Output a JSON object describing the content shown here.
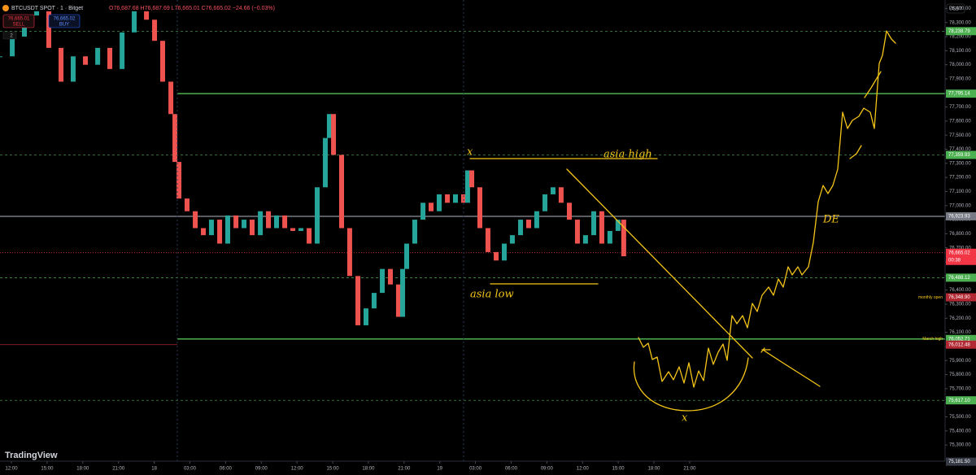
{
  "header": {
    "symbol": "BTCUSDT SPOT · 1 · Bitget",
    "ohlc": "O76,687.68 H76,687.69 L76,665.01 C76,665.02 −24.66 (−0.03%)",
    "sell_price": "76,665.01",
    "sell": "SELL",
    "buy_price": "76,665.02",
    "buy": "BUY",
    "indicators": "2",
    "currency": "USDT",
    "brand": "TradingView"
  },
  "chart_data": {
    "type": "candlestick",
    "xlim": [
      -0.96,
      78.47
    ],
    "ylim": [
      75185,
      78460
    ],
    "xticks": [
      {
        "value": 0,
        "label": "12:00"
      },
      {
        "value": 3,
        "label": "15:00"
      },
      {
        "value": 6,
        "label": "18:00"
      },
      {
        "value": 9,
        "label": "21:00"
      },
      {
        "value": 12,
        "label": "18"
      },
      {
        "value": 15,
        "label": "03:00"
      },
      {
        "value": 18,
        "label": "06:00"
      },
      {
        "value": 21,
        "label": "09:00"
      },
      {
        "value": 24,
        "label": "12:00"
      },
      {
        "value": 27,
        "label": "15:00"
      },
      {
        "value": 30,
        "label": "18:00"
      },
      {
        "value": 33,
        "label": "21:00"
      },
      {
        "value": 36,
        "label": "19"
      },
      {
        "value": 39,
        "label": "03:00"
      },
      {
        "value": 42,
        "label": "06:00"
      },
      {
        "value": 45,
        "label": "09:00"
      },
      {
        "value": 48,
        "label": "12:00"
      },
      {
        "value": 51,
        "label": "15:00"
      },
      {
        "value": 54,
        "label": "18:00"
      },
      {
        "value": 57,
        "label": "21:00"
      }
    ],
    "yticks": [
      {
        "value": 78400,
        "label": "78,400.00"
      },
      {
        "value": 78300,
        "label": "78,300.00"
      },
      {
        "value": 78200,
        "label": "78,200.00"
      },
      {
        "value": 78100,
        "label": "78,100.00"
      },
      {
        "value": 78000,
        "label": "78,000.00"
      },
      {
        "value": 77900,
        "label": "77,900.00"
      },
      {
        "value": 77800,
        "label": "77,800.00"
      },
      {
        "value": 77700,
        "label": "77,700.00"
      },
      {
        "value": 77600,
        "label": "77,600.00"
      },
      {
        "value": 77500,
        "label": "77,500.00"
      },
      {
        "value": 77400,
        "label": "77,400.00"
      },
      {
        "value": 77300,
        "label": "77,300.00"
      },
      {
        "value": 77200,
        "label": "77,200.00"
      },
      {
        "value": 77100,
        "label": "77,100.00"
      },
      {
        "value": 77000,
        "label": "77,000.00"
      },
      {
        "value": 76900,
        "label": "76,900.00"
      },
      {
        "value": 76800,
        "label": "76,800.00"
      },
      {
        "value": 76700,
        "label": "76,700.00"
      },
      {
        "value": 76600,
        "label": "76,600.00"
      },
      {
        "value": 76500,
        "label": "76,500.00"
      },
      {
        "value": 76400,
        "label": "76,400.00"
      },
      {
        "value": 76300,
        "label": "76,300.00"
      },
      {
        "value": 76200,
        "label": "76,200.00"
      },
      {
        "value": 76100,
        "label": "76,100.00"
      },
      {
        "value": 76000,
        "label": "76,000.00"
      },
      {
        "value": 75900,
        "label": "75,900.00"
      },
      {
        "value": 75800,
        "label": "75,800.00"
      },
      {
        "value": 75700,
        "label": "75,700.00"
      },
      {
        "value": 75600,
        "label": "75,600.00"
      },
      {
        "value": 75500,
        "label": "75,500.00"
      },
      {
        "value": 75400,
        "label": "75,400.00"
      },
      {
        "value": 75300,
        "label": "75,300.00"
      }
    ],
    "series": [
      {
        "name": "BTCUSDT",
        "up_color": "#26a69a",
        "down_color": "#ef5350",
        "x": [
          -0.96,
          0.07,
          1.09,
          2.12,
          3.14,
          4.17,
          5.19,
          6.22,
          7.25,
          8.27,
          9.3,
          10.32,
          11.35,
          12.03,
          12.71,
          13.4,
          13.74,
          14.08,
          14.76,
          15.45,
          16.13,
          16.81,
          17.5,
          18.18,
          18.87,
          19.55,
          20.23,
          20.92,
          21.6,
          22.28,
          22.97,
          23.65,
          24.33,
          25.02,
          25.7,
          26.38,
          26.72,
          27.07,
          27.75,
          28.43,
          29.12,
          29.8,
          30.48,
          31.17,
          31.85,
          32.53,
          32.88,
          33.22,
          33.9,
          34.59,
          35.27,
          35.95,
          36.64,
          37.32,
          38.0,
          38.34,
          38.69,
          39.37,
          40.05,
          40.74,
          41.42,
          42.1,
          42.79,
          43.47,
          44.15,
          44.84,
          45.52,
          46.2,
          46.89,
          47.57,
          48.25,
          48.94,
          49.62,
          50.3,
          50.98,
          51.46
        ],
        "values": [
          78060,
          78200,
          78350,
          78380,
          78120,
          77880,
          78060,
          78000,
          78120,
          77970,
          78230,
          78380,
          78320,
          78170,
          77880,
          77650,
          77310,
          77050,
          76960,
          76840,
          76790,
          76900,
          76730,
          76930,
          76840,
          76900,
          76790,
          76960,
          76840,
          76930,
          76840,
          76820,
          76840,
          76730,
          77130,
          77480,
          77650,
          77360,
          76840,
          76500,
          76150,
          76270,
          76380,
          76550,
          76440,
          76210,
          76550,
          76730,
          76900,
          77020,
          76960,
          77080,
          77020,
          77080,
          77020,
          77250,
          77130,
          76840,
          76670,
          76610,
          76730,
          76790,
          76900,
          76840,
          76960,
          77080,
          77130,
          77020,
          76900,
          76730,
          76790,
          76960,
          76730,
          76820,
          76900,
          76640
        ]
      }
    ],
    "levels": [
      {
        "value": 78238.79,
        "label": "78,238.79",
        "color": "#4caf50",
        "style": "dashed"
      },
      {
        "value": 77795.14,
        "label": "77,795.14",
        "color": "#4caf50",
        "style": "solid"
      },
      {
        "value": 77359.93,
        "label": "77,359.93",
        "color": "#4caf50",
        "style": "dashed"
      },
      {
        "value": 76923.93,
        "label": "76,923.93",
        "color": "#787b86",
        "style": "solid"
      },
      {
        "value": 76665.02,
        "label": "76,665.02",
        "color": "#f23645",
        "style": "dotted",
        "countdown": "00:38"
      },
      {
        "value": 76488.12,
        "label": "76,488.12",
        "color": "#4caf50",
        "style": "dashed"
      },
      {
        "value": 76348.9,
        "label": "76,348.90",
        "color": "#b22833",
        "style": "none",
        "note": "monthly open"
      },
      {
        "value": 76052.71,
        "label": "76,052.71",
        "color": "#4caf50",
        "style": "solid",
        "note": "March high"
      },
      {
        "value": 76012.48,
        "label": "76,012.48",
        "color": "#b22833",
        "style": "left"
      },
      {
        "value": 75617.1,
        "label": "75,617.10",
        "color": "#4caf50",
        "style": "dashed"
      },
      {
        "value": 75181.5,
        "label": "75,181.50",
        "color": "#363a45",
        "style": "none"
      }
    ],
    "annotations": {
      "asia_high": "asia high",
      "asia_low": "asia low",
      "x_top": "x",
      "x_bottom": "x",
      "de": "DE"
    }
  }
}
